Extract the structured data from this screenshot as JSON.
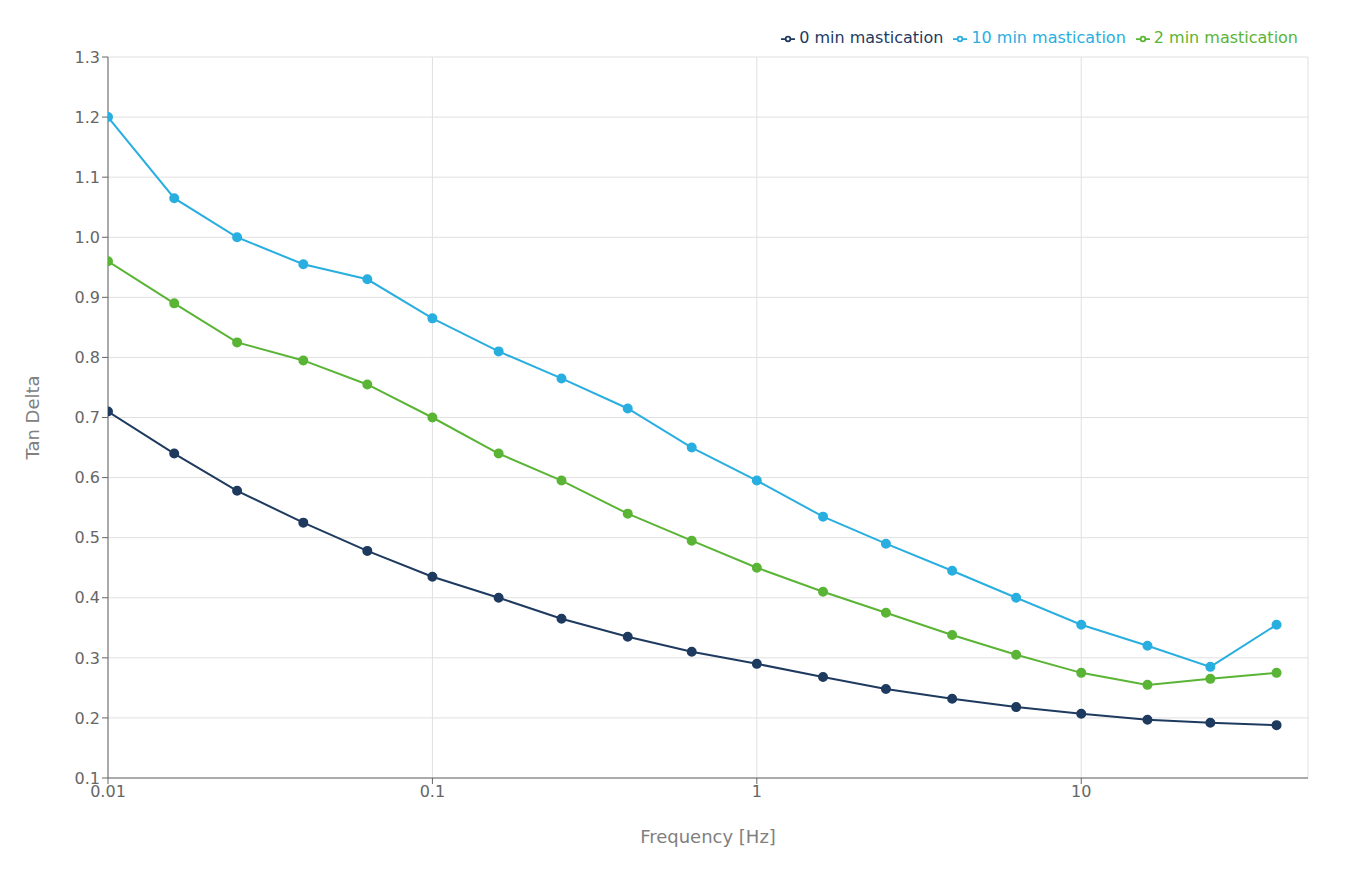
{
  "chart_data": {
    "type": "line",
    "x_label": "Frequency [Hz]",
    "y_label": "Tan Delta",
    "x": [
      0.01,
      0.016,
      0.025,
      0.04,
      0.063,
      0.1,
      0.16,
      0.25,
      0.4,
      0.63,
      1.0,
      1.6,
      2.5,
      4.0,
      6.3,
      10.0,
      16.0,
      25.0,
      40.0
    ],
    "series": [
      {
        "name": "0 min mastication",
        "color": "#1e3a5f",
        "marker": "circle",
        "values": [
          0.71,
          0.64,
          0.578,
          0.525,
          0.478,
          0.435,
          0.4,
          0.365,
          0.335,
          0.31,
          0.29,
          0.268,
          0.248,
          0.232,
          0.218,
          0.207,
          0.197,
          0.192,
          0.188
        ]
      },
      {
        "name": "2 min mastication",
        "color": "#5ab435",
        "marker": "circle",
        "values": [
          0.96,
          0.89,
          0.825,
          0.795,
          0.755,
          0.7,
          0.64,
          0.595,
          0.54,
          0.495,
          0.45,
          0.41,
          0.375,
          0.338,
          0.305,
          0.275,
          0.255,
          0.265,
          0.275
        ]
      },
      {
        "name": "10 min mastication",
        "color": "#29aee0",
        "marker": "circle",
        "values": [
          1.2,
          1.065,
          1.0,
          0.955,
          0.93,
          0.865,
          0.81,
          0.765,
          0.715,
          0.65,
          0.595,
          0.535,
          0.49,
          0.445,
          0.4,
          0.355,
          0.32,
          0.285,
          0.355
        ]
      }
    ],
    "log": "x",
    "xlim": [
      0.01,
      50
    ],
    "ylim": [
      0.1,
      1.3
    ],
    "xticks": [
      0.01,
      0.1,
      1,
      10
    ],
    "yticks": [
      0.1,
      0.2,
      0.3,
      0.4,
      0.5,
      0.6,
      0.7,
      0.8,
      0.9,
      {
        "value": 1,
        "label": "1.0"
      },
      1.1,
      1.2,
      1.3
    ],
    "grid": true,
    "legend": "upper right"
  }
}
